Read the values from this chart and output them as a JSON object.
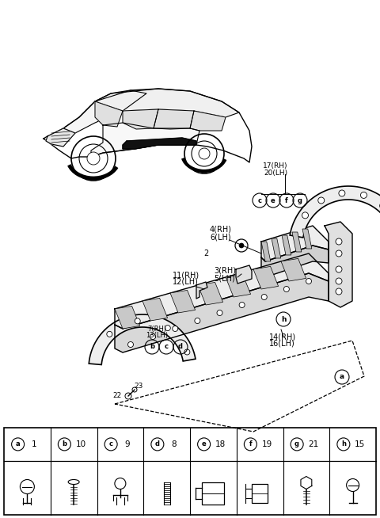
{
  "bg_color": "#ffffff",
  "parts_table": {
    "items": [
      {
        "label": "a",
        "num": "1"
      },
      {
        "label": "b",
        "num": "10"
      },
      {
        "label": "c",
        "num": "9"
      },
      {
        "label": "d",
        "num": "8"
      },
      {
        "label": "e",
        "num": "18"
      },
      {
        "label": "f",
        "num": "19"
      },
      {
        "label": "g",
        "num": "21"
      },
      {
        "label": "h",
        "num": "15"
      }
    ]
  },
  "car_color": "#333333",
  "line_color": "#000000",
  "gray_fill": "#e8e8e8",
  "light_gray": "#f0f0f0"
}
